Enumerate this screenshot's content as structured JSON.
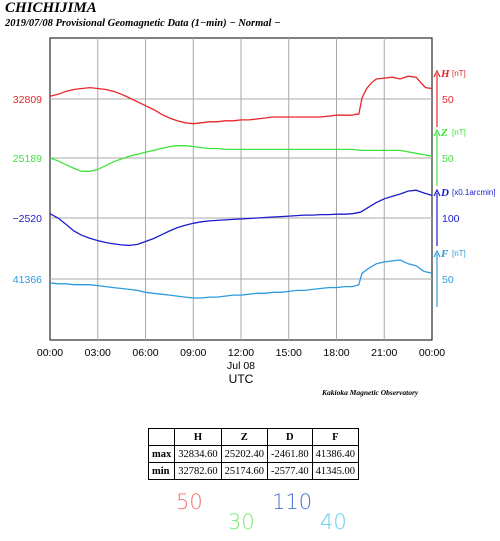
{
  "title": "CHICHIJIMA",
  "subtitle": "2019/07/08  Provisional Geomagnetic Data (1−min)  − Normal −",
  "credit": "Kakioka Magnetic Observatory",
  "chart_data": {
    "type": "line",
    "xlabel": "UTC",
    "date_label": "Jul 08",
    "x_ticks": [
      "00:00",
      "03:00",
      "06:00",
      "09:00",
      "12:00",
      "15:00",
      "18:00",
      "21:00",
      "00:00"
    ],
    "x_hours": [
      0,
      24
    ],
    "grid": true,
    "series": [
      {
        "name": "H",
        "unit": "[nT]",
        "color": "#e8262a",
        "ref_label": "32809",
        "scale_label": "50",
        "points": [
          [
            0,
            32812
          ],
          [
            0.5,
            32814
          ],
          [
            1,
            32817
          ],
          [
            1.5,
            32819
          ],
          [
            2,
            32820
          ],
          [
            2.5,
            32821
          ],
          [
            3,
            32820
          ],
          [
            3.5,
            32819
          ],
          [
            4,
            32817
          ],
          [
            4.5,
            32814
          ],
          [
            5,
            32810
          ],
          [
            5.5,
            32806
          ],
          [
            6,
            32802
          ],
          [
            6.5,
            32798
          ],
          [
            7,
            32793
          ],
          [
            7.5,
            32789
          ],
          [
            8,
            32786
          ],
          [
            8.5,
            32784
          ],
          [
            9,
            32783
          ],
          [
            9.5,
            32784
          ],
          [
            10,
            32785
          ],
          [
            10.5,
            32785
          ],
          [
            11,
            32786
          ],
          [
            11.5,
            32786
          ],
          [
            12,
            32787
          ],
          [
            12.5,
            32787
          ],
          [
            13,
            32788
          ],
          [
            13.5,
            32789
          ],
          [
            14,
            32790
          ],
          [
            14.5,
            32790
          ],
          [
            15,
            32790
          ],
          [
            15.5,
            32790
          ],
          [
            16,
            32790
          ],
          [
            16.5,
            32790
          ],
          [
            17,
            32790
          ],
          [
            17.5,
            32791
          ],
          [
            18,
            32792
          ],
          [
            18.5,
            32792
          ],
          [
            19,
            32792
          ],
          [
            19.2,
            32793
          ],
          [
            19.4,
            32793
          ],
          [
            19.6,
            32810
          ],
          [
            19.9,
            32820
          ],
          [
            20.2,
            32826
          ],
          [
            20.5,
            32830
          ],
          [
            21,
            32831
          ],
          [
            21.5,
            32832
          ],
          [
            22,
            32830
          ],
          [
            22.5,
            32833
          ],
          [
            23,
            32832
          ],
          [
            23.3,
            32826
          ],
          [
            23.6,
            32821
          ],
          [
            24,
            32820
          ]
        ]
      },
      {
        "name": "Z",
        "unit": "[nT]",
        "color": "#3ee33e",
        "ref_label": "25189",
        "scale_label": "50",
        "points": [
          [
            0,
            25189
          ],
          [
            0.5,
            25186
          ],
          [
            1,
            25182
          ],
          [
            1.5,
            25178
          ],
          [
            2,
            25175
          ],
          [
            2.5,
            25175
          ],
          [
            3,
            25177
          ],
          [
            3.5,
            25181
          ],
          [
            4,
            25185
          ],
          [
            4.5,
            25188
          ],
          [
            5,
            25191
          ],
          [
            5.5,
            25193
          ],
          [
            6,
            25195
          ],
          [
            6.5,
            25197
          ],
          [
            7,
            25199
          ],
          [
            7.5,
            25201
          ],
          [
            8,
            25202
          ],
          [
            8.5,
            25202
          ],
          [
            9,
            25201
          ],
          [
            9.5,
            25200
          ],
          [
            10,
            25199
          ],
          [
            10.5,
            25199
          ],
          [
            11,
            25198
          ],
          [
            11.5,
            25198
          ],
          [
            12,
            25198
          ],
          [
            13,
            25198
          ],
          [
            14,
            25198
          ],
          [
            15,
            25198
          ],
          [
            16,
            25198
          ],
          [
            17,
            25198
          ],
          [
            18,
            25198
          ],
          [
            19,
            25198
          ],
          [
            19.5,
            25197
          ],
          [
            20,
            25197
          ],
          [
            21,
            25197
          ],
          [
            22,
            25197
          ],
          [
            23,
            25194
          ],
          [
            24,
            25191
          ]
        ]
      },
      {
        "name": "D",
        "unit": "[x0.1arcmin]",
        "color": "#1c1ccd",
        "ref_label": "−2520",
        "scale_label": "100",
        "points": [
          [
            0,
            -2511
          ],
          [
            0.5,
            -2520
          ],
          [
            1,
            -2533
          ],
          [
            1.5,
            -2547
          ],
          [
            2,
            -2556
          ],
          [
            2.5,
            -2562
          ],
          [
            3,
            -2567
          ],
          [
            3.5,
            -2571
          ],
          [
            4,
            -2574
          ],
          [
            4.5,
            -2576
          ],
          [
            5,
            -2577
          ],
          [
            5.5,
            -2575
          ],
          [
            6,
            -2569
          ],
          [
            6.5,
            -2563
          ],
          [
            7,
            -2555
          ],
          [
            7.5,
            -2547
          ],
          [
            8,
            -2540
          ],
          [
            8.5,
            -2535
          ],
          [
            9,
            -2531
          ],
          [
            9.5,
            -2528
          ],
          [
            10,
            -2526
          ],
          [
            10.5,
            -2525
          ],
          [
            11,
            -2524
          ],
          [
            11.5,
            -2523
          ],
          [
            12,
            -2522
          ],
          [
            12.5,
            -2521
          ],
          [
            13,
            -2520
          ],
          [
            13.5,
            -2519
          ],
          [
            14,
            -2518
          ],
          [
            14.5,
            -2517
          ],
          [
            15,
            -2516
          ],
          [
            15.5,
            -2515
          ],
          [
            16,
            -2514
          ],
          [
            16.5,
            -2514
          ],
          [
            17,
            -2513
          ],
          [
            17.5,
            -2513
          ],
          [
            18,
            -2512
          ],
          [
            18.5,
            -2512
          ],
          [
            19,
            -2511
          ],
          [
            19.5,
            -2508
          ],
          [
            20,
            -2498
          ],
          [
            20.5,
            -2488
          ],
          [
            21,
            -2480
          ],
          [
            21.5,
            -2475
          ],
          [
            22,
            -2470
          ],
          [
            22.5,
            -2464
          ],
          [
            23,
            -2462
          ],
          [
            23.5,
            -2468
          ],
          [
            24,
            -2473
          ]
        ]
      },
      {
        "name": "F",
        "unit": "[nT]",
        "color": "#2e9be0",
        "ref_label": "41366",
        "scale_label": "50",
        "points": [
          [
            0,
            41362
          ],
          [
            0.5,
            41361
          ],
          [
            1,
            41361
          ],
          [
            1.5,
            41360
          ],
          [
            2,
            41360
          ],
          [
            2.5,
            41360
          ],
          [
            3,
            41359
          ],
          [
            3.5,
            41358
          ],
          [
            4,
            41357
          ],
          [
            4.5,
            41356
          ],
          [
            5,
            41355
          ],
          [
            5.5,
            41354
          ],
          [
            6,
            41352
          ],
          [
            6.5,
            41351
          ],
          [
            7,
            41350
          ],
          [
            7.5,
            41349
          ],
          [
            8,
            41348
          ],
          [
            8.5,
            41347
          ],
          [
            9,
            41346
          ],
          [
            9.5,
            41346
          ],
          [
            10,
            41347
          ],
          [
            10.5,
            41347
          ],
          [
            11,
            41348
          ],
          [
            11.5,
            41349
          ],
          [
            12,
            41349
          ],
          [
            12.5,
            41350
          ],
          [
            13,
            41351
          ],
          [
            13.5,
            41351
          ],
          [
            14,
            41352
          ],
          [
            14.5,
            41352
          ],
          [
            15,
            41353
          ],
          [
            15.5,
            41354
          ],
          [
            16,
            41354
          ],
          [
            16.5,
            41355
          ],
          [
            17,
            41356
          ],
          [
            17.5,
            41357
          ],
          [
            18,
            41357
          ],
          [
            18.5,
            41358
          ],
          [
            19,
            41358
          ],
          [
            19.4,
            41360
          ],
          [
            19.6,
            41372
          ],
          [
            20,
            41377
          ],
          [
            20.5,
            41382
          ],
          [
            21,
            41384
          ],
          [
            21.5,
            41385
          ],
          [
            22,
            41386
          ],
          [
            22.5,
            41382
          ],
          [
            23,
            41380
          ],
          [
            23.5,
            41374
          ],
          [
            24,
            41372
          ]
        ]
      }
    ]
  },
  "stats_table": {
    "headers": [
      "",
      "H",
      "Z",
      "D",
      "F"
    ],
    "rows": [
      {
        "label": "max",
        "values": [
          "32834.60",
          "25202.40",
          "-2461.80",
          "41386.40"
        ]
      },
      {
        "label": "min",
        "values": [
          "32782.60",
          "25174.60",
          "-2577.40",
          "41345.00"
        ]
      }
    ]
  },
  "scale_notes": [
    {
      "text": "50",
      "color": "#f06f6f"
    },
    {
      "text": "30",
      "color": "#77e877"
    },
    {
      "text": "110",
      "color": "#4a6fd0"
    },
    {
      "text": "40",
      "color": "#61cdf0"
    }
  ]
}
